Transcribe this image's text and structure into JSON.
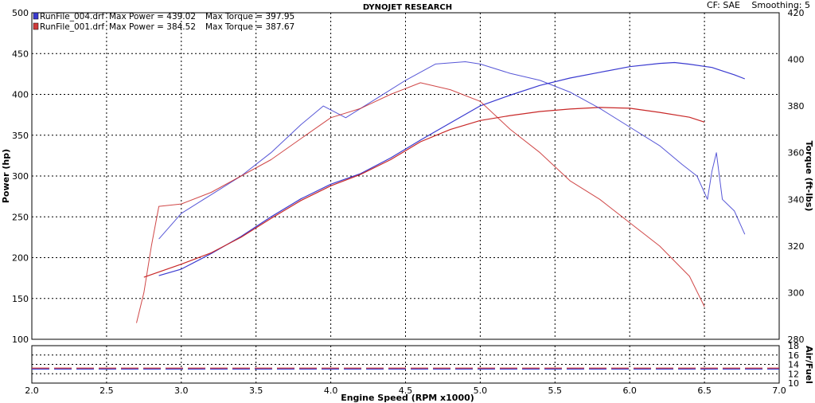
{
  "header": {
    "title": "DYNOJET RESEARCH",
    "cf_label": "CF: SAE",
    "smoothing_label": "Smoothing: 5"
  },
  "legend": [
    {
      "file": "RunFile_004.drf",
      "max_power_label": "Max Power = 439.02",
      "max_torque_label": "Max Torque = 397.95",
      "color": "#3a3ad0"
    },
    {
      "file": "RunFile_001.drf",
      "max_power_label": "Max Power = 384.52",
      "max_torque_label": "Max Torque = 387.67",
      "color": "#d03a3a"
    }
  ],
  "chart_data": [
    {
      "type": "line",
      "xlabel": "Engine Speed (RPM x1000)",
      "ylabel": "Power (hp)",
      "y2label": "Torque (ft-lbs)",
      "xlim": [
        2.0,
        7.0
      ],
      "ylim": [
        100,
        500
      ],
      "y2lim": [
        280,
        420
      ],
      "x_ticks": [
        "2.0",
        "2.5",
        "3.0",
        "3.5",
        "4.0",
        "4.5",
        "5.0",
        "5.5",
        "6.0",
        "6.5",
        "7.0"
      ],
      "y_ticks": [
        "100",
        "150",
        "200",
        "250",
        "300",
        "350",
        "400",
        "450",
        "500"
      ],
      "y2_ticks": [
        "280",
        "300",
        "320",
        "340",
        "360",
        "380",
        "400",
        "420"
      ],
      "grid": true,
      "legend_position": "top-left",
      "series": [
        {
          "name": "RunFile_004.drf",
          "measure": "power",
          "axis": "left",
          "color": "#3a3ad0",
          "x": [
            2.85,
            3.0,
            3.2,
            3.4,
            3.6,
            3.8,
            4.0,
            4.2,
            4.4,
            4.6,
            4.8,
            5.0,
            5.2,
            5.4,
            5.6,
            5.8,
            6.0,
            6.2,
            6.3,
            6.4,
            6.55,
            6.6,
            6.7,
            6.77
          ],
          "y": [
            178,
            186,
            205,
            226,
            250,
            272,
            290,
            303,
            322,
            344,
            365,
            386,
            399,
            411,
            420,
            427,
            434,
            438,
            439,
            437,
            433,
            430,
            424,
            419
          ]
        },
        {
          "name": "RunFile_001.drf",
          "measure": "power",
          "axis": "left",
          "color": "#c82828",
          "x": [
            2.75,
            3.0,
            3.2,
            3.4,
            3.6,
            3.8,
            4.0,
            4.2,
            4.4,
            4.6,
            4.8,
            5.0,
            5.2,
            5.4,
            5.6,
            5.8,
            6.0,
            6.2,
            6.4,
            6.5
          ],
          "y": [
            176,
            192,
            206,
            225,
            248,
            270,
            288,
            302,
            320,
            342,
            357,
            368,
            374,
            379,
            382,
            384,
            383,
            378,
            372,
            366
          ]
        },
        {
          "name": "RunFile_004.drf",
          "measure": "torque",
          "axis": "right",
          "color": "#3a3ad0",
          "x": [
            2.85,
            3.0,
            3.2,
            3.4,
            3.6,
            3.8,
            3.95,
            4.1,
            4.3,
            4.5,
            4.7,
            4.9,
            5.0,
            5.2,
            5.4,
            5.6,
            5.8,
            6.0,
            6.2,
            6.35,
            6.45,
            6.52,
            6.55,
            6.58,
            6.62,
            6.7,
            6.77
          ],
          "y": [
            323,
            334,
            342,
            350,
            360,
            372,
            380,
            375,
            383,
            391,
            398,
            399,
            398,
            394,
            391,
            386,
            379,
            371,
            363,
            355,
            350,
            340,
            352,
            360,
            340,
            335,
            325
          ]
        },
        {
          "name": "RunFile_001.drf",
          "measure": "torque",
          "axis": "right",
          "color": "#c82828",
          "x": [
            2.7,
            2.75,
            2.8,
            2.85,
            3.0,
            3.2,
            3.4,
            3.6,
            3.8,
            4.0,
            4.2,
            4.4,
            4.6,
            4.8,
            5.0,
            5.2,
            5.4,
            5.6,
            5.8,
            6.0,
            6.2,
            6.4,
            6.5
          ],
          "y": [
            287,
            300,
            320,
            337,
            338,
            343,
            350,
            357,
            366,
            375,
            379,
            385,
            390,
            387,
            382,
            370,
            360,
            348,
            340,
            330,
            320,
            307,
            294
          ]
        }
      ]
    },
    {
      "type": "line",
      "ylabel": "Air/Fuel",
      "ylim": [
        10,
        18
      ],
      "y_ticks": [
        "10",
        "12",
        "14",
        "16",
        "18"
      ],
      "grid": true,
      "series": [
        {
          "name": "RunFile_004.drf",
          "color": "#3a3ad0",
          "x": [
            2.0,
            7.0
          ],
          "y": [
            13.0,
            13.0
          ]
        },
        {
          "name": "RunFile_001.drf",
          "color": "#c82828",
          "x": [
            2.0,
            7.0
          ],
          "y": [
            13.2,
            13.2
          ]
        }
      ]
    }
  ]
}
